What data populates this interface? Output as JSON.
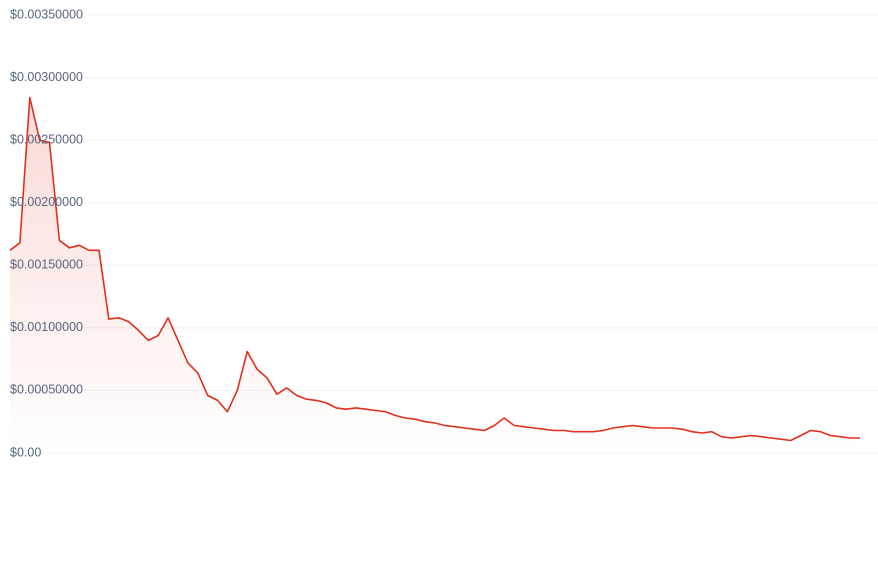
{
  "chart_data": {
    "type": "area",
    "color": "#e0301e",
    "grid": true,
    "ylim": [
      0,
      0.0035
    ],
    "yticks": [
      {
        "value": 0,
        "label": "$0.00"
      },
      {
        "value": 0.0005,
        "label": "$0.00050000"
      },
      {
        "value": 0.001,
        "label": "$0.00100000"
      },
      {
        "value": 0.0015,
        "label": "$0.00150000"
      },
      {
        "value": 0.002,
        "label": "$0.00200000"
      },
      {
        "value": 0.0025,
        "label": "$0.00250000"
      },
      {
        "value": 0.003,
        "label": "$0.00300000"
      },
      {
        "value": 0.0035,
        "label": "$0.00350000"
      }
    ],
    "values": [
      0.00162,
      0.00168,
      0.00284,
      0.0025,
      0.00248,
      0.0017,
      0.00164,
      0.00166,
      0.00162,
      0.00162,
      0.00107,
      0.00108,
      0.00105,
      0.00098,
      0.0009,
      0.00094,
      0.00108,
      0.0009,
      0.00072,
      0.00064,
      0.00046,
      0.00042,
      0.00033,
      0.0005,
      0.00081,
      0.00067,
      0.0006,
      0.00047,
      0.00052,
      0.00046,
      0.00043,
      0.00042,
      0.0004,
      0.00036,
      0.00035,
      0.00036,
      0.00035,
      0.00034,
      0.00033,
      0.0003,
      0.00028,
      0.00027,
      0.00025,
      0.00024,
      0.00022,
      0.00021,
      0.0002,
      0.00019,
      0.00018,
      0.00022,
      0.00028,
      0.00022,
      0.00021,
      0.0002,
      0.00019,
      0.00018,
      0.00018,
      0.00017,
      0.00017,
      0.00017,
      0.00018,
      0.0002,
      0.00021,
      0.00022,
      0.00021,
      0.0002,
      0.0002,
      0.0002,
      0.00019,
      0.00017,
      0.00016,
      0.00017,
      0.00013,
      0.00012,
      0.00013,
      0.00014,
      0.00013,
      0.00012,
      0.00011,
      0.0001,
      0.00014,
      0.00018,
      0.00017,
      0.00014,
      0.00013,
      0.00012,
      0.00012
    ]
  }
}
